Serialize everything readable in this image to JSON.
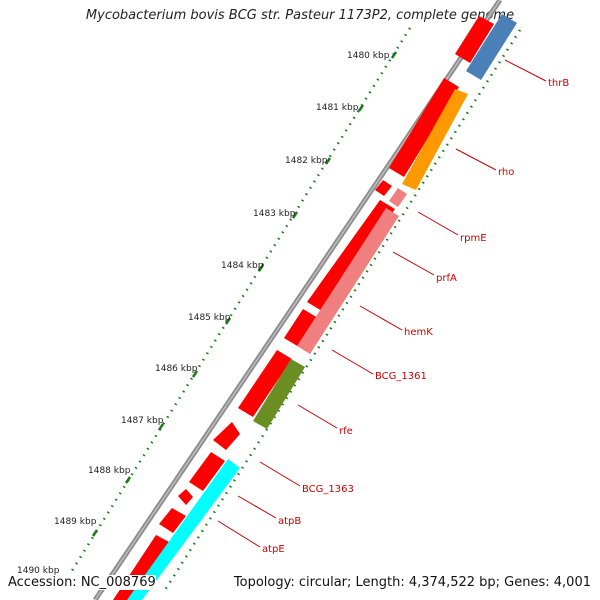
{
  "title": "Mycobacterium bovis BCG str. Pasteur 1173P2, complete genome",
  "accession_label": "Accession: NC_008769",
  "footer_info": "Topology: circular; Length: 4,374,522 bp; Genes: 4,001",
  "colors": {
    "backbone": "#7a7a7a",
    "forward_gene": "#ff0000",
    "tick": "#1a7a1a",
    "label": "#cc0000",
    "thrB": "#4682b4",
    "rho": "#ff9900",
    "rpmE": "#f08080",
    "prfA": "#f08080",
    "hemK": "#f08080",
    "BCG_1361": "#f08080",
    "rfe": "#6b8e23",
    "atp": "#00ffff"
  },
  "kbp_ticks": [
    "1480 kbp",
    "1481 kbp",
    "1482 kbp",
    "1483 kbp",
    "1484 kbp",
    "1485 kbp",
    "1486 kbp",
    "1487 kbp",
    "1488 kbp",
    "1489 kbp",
    "1490 kbp"
  ],
  "gene_labels": [
    "thrB",
    "rho",
    "rpmE",
    "prfA",
    "hemK",
    "BCG_1361",
    "rfe",
    "BCG_1363",
    "atpB",
    "atpE"
  ]
}
